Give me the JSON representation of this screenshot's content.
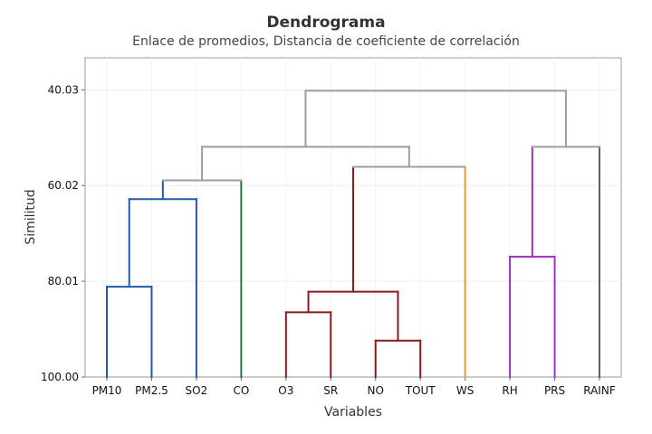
{
  "chart_data": {
    "type": "dendrogram",
    "title": "Dendrograma",
    "subtitle": "Enlace de promedios, Distancia de coeficiente de correlación",
    "xlabel": "Variables",
    "ylabel": "Similitud",
    "ylim": [
      100.0,
      33.36
    ],
    "y_ticks": [
      "40.03",
      "60.02",
      "80.01",
      "100.00"
    ],
    "grid": true,
    "leaves": [
      "PM10",
      "PM2.5",
      "SO2",
      "CO",
      "O3",
      "SR",
      "NO",
      "TOUT",
      "WS",
      "RH",
      "PRS",
      "RAINF"
    ],
    "merges": [
      {
        "id": "m1",
        "left": "PM10",
        "right": "PM2.5",
        "similarity": 81.15,
        "color": "#1F5BA6"
      },
      {
        "id": "m2",
        "left": "m1",
        "right": "SO2",
        "similarity": 62.86,
        "color": "#1F5BA6"
      },
      {
        "id": "m3",
        "left": "m2",
        "right": "CO",
        "similarity": 58.95,
        "color": "#9E9E9E"
      },
      {
        "id": "m4",
        "left": "NO",
        "right": "TOUT",
        "similarity": 92.39,
        "color": "#8B1A1A"
      },
      {
        "id": "m5",
        "left": "O3",
        "right": "SR",
        "similarity": 86.48,
        "color": "#8B1A1A"
      },
      {
        "id": "m6",
        "left": "m5",
        "right": "m4",
        "similarity": 82.19,
        "color": "#8B1A1A"
      },
      {
        "id": "m7",
        "left": "m6",
        "right": "WS",
        "similarity": 56.1,
        "color": "#9E9E9E"
      },
      {
        "id": "m8",
        "left": "m3",
        "right": "m7",
        "similarity": 51.92,
        "color": "#9E9E9E"
      },
      {
        "id": "m9",
        "left": "RH",
        "right": "PRS",
        "similarity": 74.86,
        "color": "#9B30C9"
      },
      {
        "id": "m10",
        "left": "m9",
        "right": "RAINF",
        "similarity": 51.92,
        "color": "#9E9E9E"
      },
      {
        "id": "m11",
        "left": "m8",
        "right": "m10",
        "similarity": 40.22,
        "color": "#9E9E9E"
      }
    ],
    "leaf_colors": {
      "PM10": "#1F5BA6",
      "PM2.5": "#1F5BA6",
      "SO2": "#1F5BA6",
      "CO": "#1E7B3A",
      "O3": "#8B1A1A",
      "SR": "#8B1A1A",
      "NO": "#8B1A1A",
      "TOUT": "#8B1A1A",
      "WS": "#E0A020",
      "RH": "#9B30C9",
      "PRS": "#9B30C9",
      "RAINF": "#606060"
    }
  }
}
